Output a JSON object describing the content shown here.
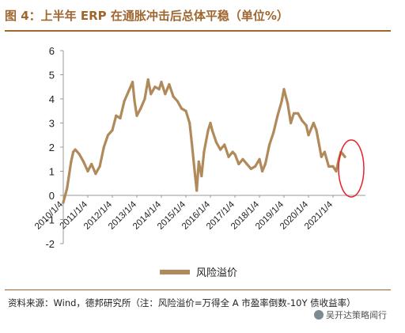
{
  "figure_title": "图 4：上半年 ERP 在通胀冲击后总体平稳（单位%）",
  "source_note": "资料来源：Wind，德邦研究所（注：风险溢价=万得全 A 市盈率倒数-10Y 债收益率）",
  "watermark": "吴开达策略闻行",
  "colors": {
    "line": "#b08a5a",
    "highlight": "#e8202a",
    "accent": "#a0662f"
  },
  "chart_data": {
    "type": "line",
    "title": "",
    "xlabel": "",
    "ylabel": "",
    "ylim": [
      -2,
      6
    ],
    "yticks": [
      "6",
      "5",
      "4",
      "3",
      "2",
      "1",
      "0",
      "-1",
      "-2"
    ],
    "xticks": [
      "2010/1/4",
      "2011/1/4",
      "2012/1/4",
      "2013/1/4",
      "2014/1/4",
      "2015/1/4",
      "2016/1/4",
      "2017/1/4",
      "2018/1/4",
      "2019/1/4",
      "2020/1/4",
      "2021/1/4"
    ],
    "legend": {
      "position": "bottom"
    },
    "annotation": "red ellipse highlighting 2021 data",
    "series": [
      {
        "name": "风险溢价",
        "x": [
          "2010-01-04",
          "2010-03-01",
          "2010-05-01",
          "2010-06-01",
          "2010-07-01",
          "2010-09-01",
          "2010-11-01",
          "2011-01-04",
          "2011-03-01",
          "2011-05-01",
          "2011-07-01",
          "2011-09-01",
          "2011-11-01",
          "2012-01-04",
          "2012-03-01",
          "2012-05-01",
          "2012-07-01",
          "2012-09-01",
          "2012-11-01",
          "2012-12-01",
          "2013-01-04",
          "2013-03-01",
          "2013-05-01",
          "2013-06-20",
          "2013-08-01",
          "2013-10-01",
          "2013-12-01",
          "2014-01-04",
          "2014-03-01",
          "2014-05-01",
          "2014-07-01",
          "2014-09-01",
          "2014-11-01",
          "2015-01-04",
          "2015-03-01",
          "2015-04-01",
          "2015-05-15",
          "2015-06-15",
          "2015-07-15",
          "2015-08-25",
          "2015-10-01",
          "2015-12-01",
          "2016-01-04",
          "2016-02-01",
          "2016-04-01",
          "2016-06-01",
          "2016-08-01",
          "2016-10-01",
          "2016-12-01",
          "2017-01-04",
          "2017-03-01",
          "2017-05-01",
          "2017-07-01",
          "2017-09-01",
          "2017-11-01",
          "2018-01-04",
          "2018-02-15",
          "2018-04-01",
          "2018-06-01",
          "2018-08-01",
          "2018-10-01",
          "2018-12-01",
          "2019-01-04",
          "2019-03-01",
          "2019-04-15",
          "2019-06-01",
          "2019-08-01",
          "2019-10-01",
          "2019-12-01",
          "2020-01-04",
          "2020-03-20",
          "2020-05-01",
          "2020-07-15",
          "2020-09-01",
          "2020-11-01",
          "2021-01-04",
          "2021-02-20",
          "2021-04-01",
          "2021-05-01",
          "2021-06-01",
          "2021-06-30"
        ],
        "values": [
          -0.3,
          0.3,
          1.4,
          1.8,
          1.9,
          1.7,
          1.4,
          1.0,
          1.3,
          0.9,
          1.2,
          2.0,
          2.5,
          2.7,
          3.3,
          3.2,
          3.9,
          4.3,
          4.7,
          3.9,
          3.3,
          3.6,
          4.0,
          4.8,
          4.2,
          4.5,
          4.4,
          4.7,
          4.2,
          4.6,
          4.1,
          3.9,
          3.6,
          3.5,
          3.0,
          2.2,
          1.0,
          0.2,
          1.4,
          0.8,
          1.8,
          2.7,
          3.0,
          2.7,
          2.2,
          1.9,
          2.1,
          1.6,
          1.8,
          1.7,
          1.3,
          1.5,
          1.3,
          1.1,
          1.2,
          1.5,
          1.0,
          1.3,
          2.1,
          2.6,
          3.3,
          3.9,
          4.4,
          3.8,
          3.0,
          3.4,
          3.4,
          3.1,
          2.9,
          2.5,
          3.0,
          2.7,
          1.6,
          1.8,
          1.2,
          1.2,
          1.0,
          1.5,
          1.8,
          1.7,
          1.6
        ]
      }
    ]
  }
}
